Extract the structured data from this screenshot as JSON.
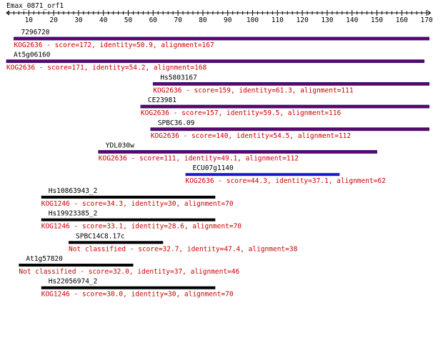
{
  "query": {
    "name": "Emax_0871_orf1",
    "length": 171,
    "tick_labels": [
      "10",
      "20",
      "30",
      "40",
      "50",
      "60",
      "70",
      "80",
      "90",
      "100",
      "110",
      "120",
      "130",
      "140",
      "150",
      "160",
      "170"
    ]
  },
  "colors": {
    "ruler": "#000000",
    "text_name": "#000000",
    "text_desc": "#cc0000",
    "bar_purple": "#660066",
    "bar_purple_edge": "#1a1a7a",
    "bar_blue": "#1a1acc",
    "bar_black": "#000000"
  },
  "hits": [
    {
      "name": "7296720",
      "desc": "KOG2636 - score=172, identity=50.9, alignment=167",
      "start": 4,
      "end": 171,
      "color": "purple"
    },
    {
      "name": "At5g06160",
      "desc": "KOG2636 - score=171, identity=54.2, alignment=168",
      "start": 1,
      "end": 169,
      "color": "purple"
    },
    {
      "name": "Hs5803167",
      "desc": "KOG2636 - score=159, identity=61.3, alignment=111",
      "start": 60,
      "end": 171,
      "color": "purple"
    },
    {
      "name": "CE23981",
      "desc": "KOG2636 - score=157, identity=59.5, alignment=116",
      "start": 55,
      "end": 171,
      "color": "purple"
    },
    {
      "name": "SPBC36.09",
      "desc": "KOG2636 - score=140, identity=54.5, alignment=112",
      "start": 59,
      "end": 171,
      "color": "purple"
    },
    {
      "name": "YDL030w",
      "desc": "KOG2636 - score=111, identity=49.1, alignment=112",
      "start": 38,
      "end": 150,
      "color": "purple"
    },
    {
      "name": "ECU07g1140",
      "desc": "KOG2636 - score=44.3, identity=37.1, alignment=62",
      "start": 73,
      "end": 135,
      "color": "blue"
    },
    {
      "name": "Hs10863943_2",
      "desc": "KOG1246 - score=34.3, identity=30, alignment=70",
      "start": 15,
      "end": 85,
      "color": "black"
    },
    {
      "name": "Hs19923385_2",
      "desc": "KOG1246 - score=33.1, identity=28.6, alignment=70",
      "start": 15,
      "end": 85,
      "color": "black"
    },
    {
      "name": "SPBC14C8.17c",
      "desc": "Not classified - score=32.7, identity=47.4, alignment=38",
      "start": 26,
      "end": 64,
      "color": "black"
    },
    {
      "name": "At1g57820",
      "desc": "Not classified - score=32.0, identity=37, alignment=46",
      "start": 6,
      "end": 52,
      "color": "black"
    },
    {
      "name": "Hs22056974_2",
      "desc": "KOG1246 - score=30.0, identity=30, alignment=70",
      "start": 15,
      "end": 85,
      "color": "black"
    }
  ]
}
